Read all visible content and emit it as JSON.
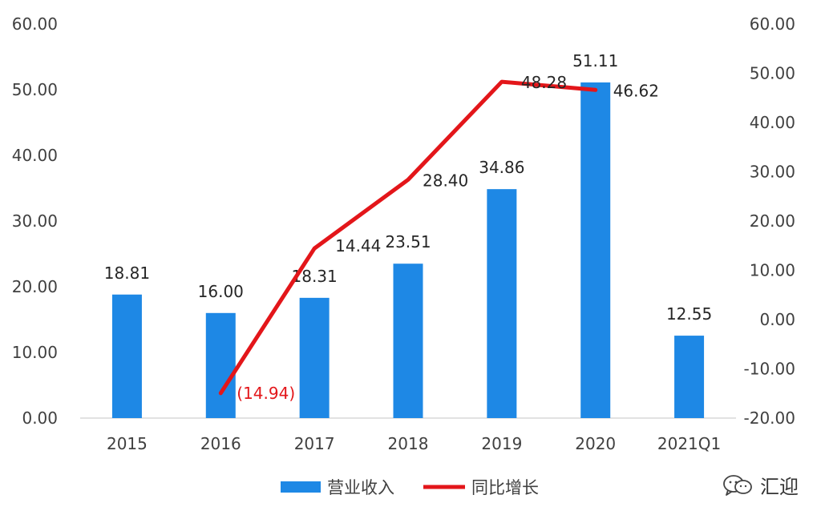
{
  "chart_data": {
    "type": "bar",
    "categories": [
      "2015",
      "2016",
      "2017",
      "2018",
      "2019",
      "2020",
      "2021Q1"
    ],
    "series": [
      {
        "name": "营业收入",
        "type": "bar",
        "axis": "left",
        "color": "#1e88e5",
        "values": [
          18.81,
          16.0,
          18.31,
          23.51,
          34.86,
          51.11,
          12.55
        ],
        "labels": [
          "18.81",
          "16.00",
          "18.31",
          "23.51",
          "34.86",
          "51.11",
          "12.55"
        ]
      },
      {
        "name": "同比增长",
        "type": "line",
        "axis": "right",
        "color": "#e3161a",
        "values": [
          null,
          -14.94,
          14.44,
          28.4,
          48.28,
          46.62,
          null
        ],
        "labels": [
          "",
          "(14.94)",
          "14.44",
          "28.40",
          "48.28",
          "46.62",
          ""
        ]
      }
    ],
    "y_left": {
      "ylim": [
        0,
        60
      ],
      "ticks": [
        "0.00",
        "10.00",
        "20.00",
        "30.00",
        "40.00",
        "50.00",
        "60.00"
      ]
    },
    "y_right": {
      "ylim": [
        -20,
        60
      ],
      "ticks": [
        "-20.00",
        "-10.00",
        "0.00",
        "10.00",
        "20.00",
        "30.00",
        "40.00",
        "50.00",
        "60.00"
      ]
    },
    "grid": false,
    "legend_position": "bottom",
    "title": "",
    "xlabel": "",
    "ylabel": ""
  },
  "watermark": {
    "text": "汇迎",
    "icon": "wechat-icon"
  }
}
